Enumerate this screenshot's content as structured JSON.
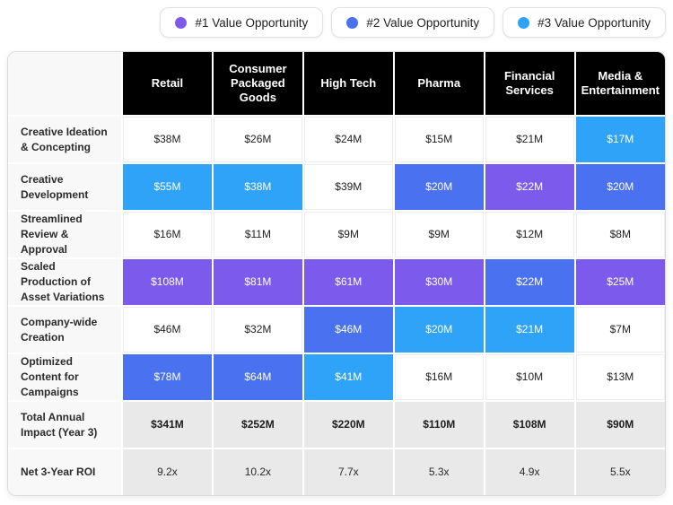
{
  "colors": {
    "rank1": "#7b5aec",
    "rank2": "#4a71f0",
    "rank3": "#2fa3f7",
    "header_bg": "#000000",
    "label_bg": "#f8f8f8",
    "total_bg": "#e9e9e9"
  },
  "legend": {
    "items": [
      {
        "label": "#1 Value Opportunity",
        "color": "#7b5aec",
        "icon": "rank1-dot-icon"
      },
      {
        "label": "#2 Value Opportunity",
        "color": "#4a71f0",
        "icon": "rank2-dot-icon"
      },
      {
        "label": "#3 Value Opportunity",
        "color": "#2fa3f7",
        "icon": "rank3-dot-icon"
      }
    ]
  },
  "chart_data": {
    "type": "table",
    "columns": [
      "Retail",
      "Consumer Packaged Goods",
      "High Tech",
      "Pharma",
      "Financial Services",
      "Media & Entertainment"
    ],
    "rank_legend": {
      "1": "#1 Value Opportunity",
      "2": "#2 Value Opportunity",
      "3": "#3 Value Opportunity"
    },
    "rows": [
      {
        "label": "Creative Ideation & Concepting",
        "kind": "value",
        "cells": [
          {
            "value": "$38M",
            "rank": null
          },
          {
            "value": "$26M",
            "rank": null
          },
          {
            "value": "$24M",
            "rank": null
          },
          {
            "value": "$15M",
            "rank": null
          },
          {
            "value": "$21M",
            "rank": null
          },
          {
            "value": "$17M",
            "rank": 3
          }
        ]
      },
      {
        "label": "Creative Development",
        "kind": "value",
        "cells": [
          {
            "value": "$55M",
            "rank": 3
          },
          {
            "value": "$38M",
            "rank": 3
          },
          {
            "value": "$39M",
            "rank": null
          },
          {
            "value": "$20M",
            "rank": 2
          },
          {
            "value": "$22M",
            "rank": 1
          },
          {
            "value": "$20M",
            "rank": 2
          }
        ]
      },
      {
        "label": "Streamlined Review & Approval",
        "kind": "value",
        "cells": [
          {
            "value": "$16M",
            "rank": null
          },
          {
            "value": "$11M",
            "rank": null
          },
          {
            "value": "$9M",
            "rank": null
          },
          {
            "value": "$9M",
            "rank": null
          },
          {
            "value": "$12M",
            "rank": null
          },
          {
            "value": "$8M",
            "rank": null
          }
        ]
      },
      {
        "label": "Scaled Production of Asset Variations",
        "kind": "value",
        "cells": [
          {
            "value": "$108M",
            "rank": 1
          },
          {
            "value": "$81M",
            "rank": 1
          },
          {
            "value": "$61M",
            "rank": 1
          },
          {
            "value": "$30M",
            "rank": 1
          },
          {
            "value": "$22M",
            "rank": 2
          },
          {
            "value": "$25M",
            "rank": 1
          }
        ]
      },
      {
        "label": "Company-wide Creation",
        "kind": "value",
        "cells": [
          {
            "value": "$46M",
            "rank": null
          },
          {
            "value": "$32M",
            "rank": null
          },
          {
            "value": "$46M",
            "rank": 2
          },
          {
            "value": "$20M",
            "rank": 3
          },
          {
            "value": "$21M",
            "rank": 3
          },
          {
            "value": "$7M",
            "rank": null
          }
        ]
      },
      {
        "label": "Optimized Content for Campaigns",
        "kind": "value",
        "cells": [
          {
            "value": "$78M",
            "rank": 2
          },
          {
            "value": "$64M",
            "rank": 2
          },
          {
            "value": "$41M",
            "rank": 3
          },
          {
            "value": "$16M",
            "rank": null
          },
          {
            "value": "$10M",
            "rank": null
          },
          {
            "value": "$13M",
            "rank": null
          }
        ]
      },
      {
        "label": "Total Annual Impact (Year 3)",
        "kind": "total",
        "cells": [
          {
            "value": "$341M",
            "rank": null
          },
          {
            "value": "$252M",
            "rank": null
          },
          {
            "value": "$220M",
            "rank": null
          },
          {
            "value": "$110M",
            "rank": null
          },
          {
            "value": "$108M",
            "rank": null
          },
          {
            "value": "$90M",
            "rank": null
          }
        ]
      },
      {
        "label": "Net 3-Year ROI",
        "kind": "roi",
        "cells": [
          {
            "value": "9.2x",
            "rank": null
          },
          {
            "value": "10.2x",
            "rank": null
          },
          {
            "value": "7.7x",
            "rank": null
          },
          {
            "value": "5.3x",
            "rank": null
          },
          {
            "value": "4.9x",
            "rank": null
          },
          {
            "value": "5.5x",
            "rank": null
          }
        ]
      }
    ]
  }
}
